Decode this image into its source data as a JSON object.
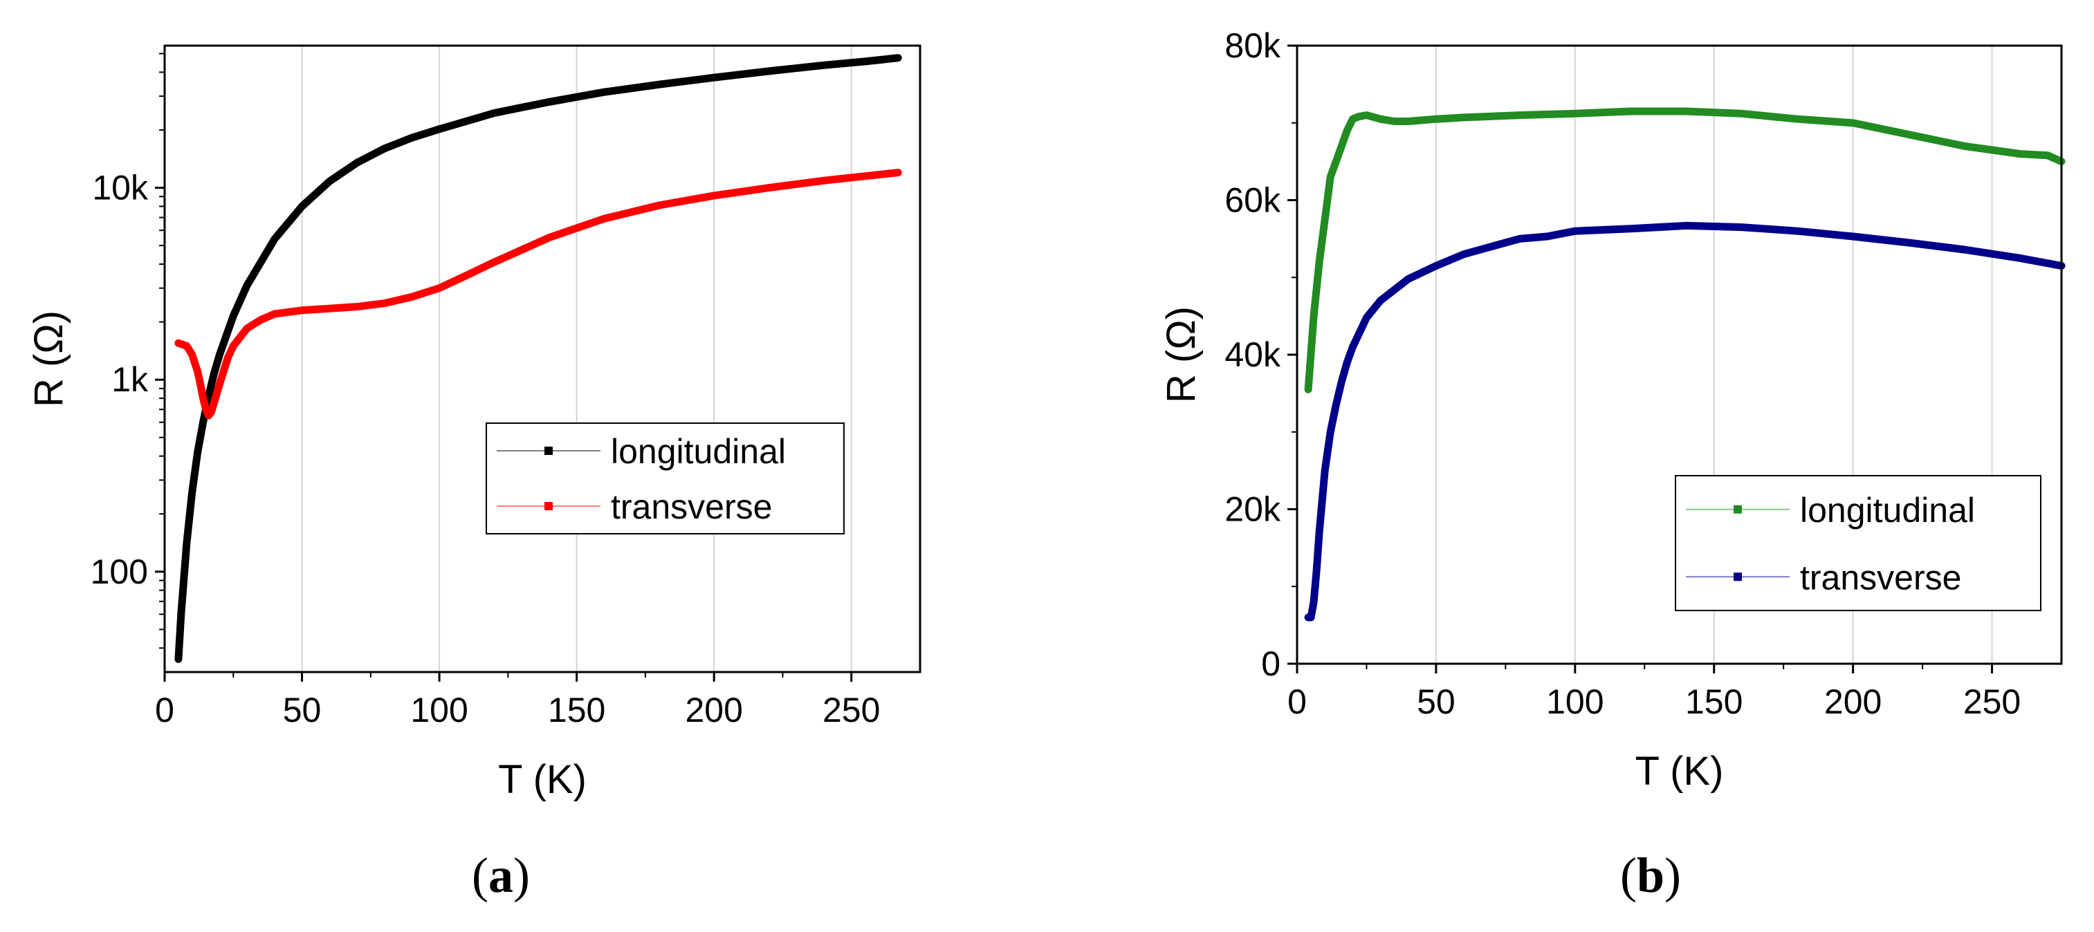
{
  "chart_data": [
    {
      "type": "line",
      "panel_label": "a",
      "xlabel": "T (K)",
      "ylabel": "R (Ω)",
      "xlim": [
        0,
        275
      ],
      "ylim": [
        30,
        55000
      ],
      "yscale": "log",
      "xticks": [
        0,
        50,
        100,
        150,
        200,
        250
      ],
      "yticks": [
        {
          "value": 100,
          "label": "100"
        },
        {
          "value": 1000,
          "label": "1k"
        },
        {
          "value": 10000,
          "label": "10k"
        }
      ],
      "grid": "vertical",
      "legend": "center-right",
      "series": [
        {
          "name": "longitudinal",
          "color": "#000000",
          "x": [
            5,
            6,
            8,
            10,
            12,
            14,
            16,
            18,
            20,
            25,
            30,
            40,
            50,
            60,
            70,
            80,
            90,
            100,
            120,
            140,
            160,
            180,
            200,
            220,
            240,
            255,
            267
          ],
          "y": [
            35,
            60,
            140,
            260,
            420,
            600,
            820,
            1080,
            1350,
            2150,
            3100,
            5400,
            8000,
            10800,
            13500,
            16000,
            18200,
            20200,
            24500,
            28000,
            31500,
            34500,
            37500,
            40500,
            43500,
            45500,
            47500
          ]
        },
        {
          "name": "transverse",
          "color": "#ff0000",
          "x": [
            5,
            8,
            10,
            12,
            13,
            14,
            15,
            16,
            17,
            18,
            20,
            23,
            25,
            30,
            35,
            40,
            50,
            60,
            70,
            80,
            90,
            100,
            110,
            120,
            140,
            160,
            180,
            200,
            220,
            240,
            255,
            267
          ],
          "y": [
            1550,
            1500,
            1350,
            1100,
            950,
            800,
            700,
            650,
            680,
            760,
            950,
            1300,
            1500,
            1850,
            2050,
            2200,
            2300,
            2350,
            2400,
            2500,
            2700,
            3000,
            3500,
            4100,
            5500,
            6900,
            8100,
            9100,
            10000,
            10900,
            11500,
            12000
          ]
        }
      ]
    },
    {
      "type": "line",
      "panel_label": "b",
      "xlabel": "T (K)",
      "ylabel": "R (Ω)",
      "xlim": [
        0,
        275
      ],
      "ylim": [
        0,
        80000
      ],
      "yscale": "linear",
      "xticks": [
        0,
        50,
        100,
        150,
        200,
        250
      ],
      "yticks": [
        {
          "value": 0,
          "label": "0"
        },
        {
          "value": 20000,
          "label": "20k"
        },
        {
          "value": 40000,
          "label": "40k"
        },
        {
          "value": 60000,
          "label": "60k"
        },
        {
          "value": 80000,
          "label": "80k"
        }
      ],
      "grid": "vertical",
      "legend": "bottom-right",
      "series": [
        {
          "name": "longitudinal",
          "color": "#228b22",
          "x": [
            4,
            6,
            8,
            10,
            12,
            15,
            18,
            20,
            22,
            25,
            30,
            35,
            40,
            50,
            60,
            80,
            100,
            120,
            140,
            160,
            180,
            200,
            220,
            240,
            260,
            270,
            275
          ],
          "y": [
            35500,
            45000,
            52000,
            57500,
            63000,
            66000,
            69000,
            70500,
            70800,
            71000,
            70500,
            70200,
            70200,
            70500,
            70700,
            71000,
            71200,
            71500,
            71500,
            71200,
            70500,
            70000,
            68500,
            67000,
            66000,
            65800,
            65000
          ]
        },
        {
          "name": "transverse",
          "color": "#00008b",
          "x": [
            4,
            5,
            6,
            7,
            8,
            10,
            12,
            14,
            16,
            18,
            20,
            25,
            30,
            40,
            50,
            60,
            70,
            80,
            90,
            100,
            120,
            140,
            160,
            180,
            200,
            220,
            240,
            260,
            275
          ],
          "y": [
            6000,
            6000,
            8000,
            12000,
            17000,
            25000,
            30000,
            33500,
            36500,
            39000,
            41000,
            44800,
            47000,
            49800,
            51500,
            53000,
            54000,
            55000,
            55300,
            56000,
            56300,
            56700,
            56500,
            56000,
            55300,
            54500,
            53600,
            52500,
            51500
          ]
        }
      ]
    }
  ]
}
